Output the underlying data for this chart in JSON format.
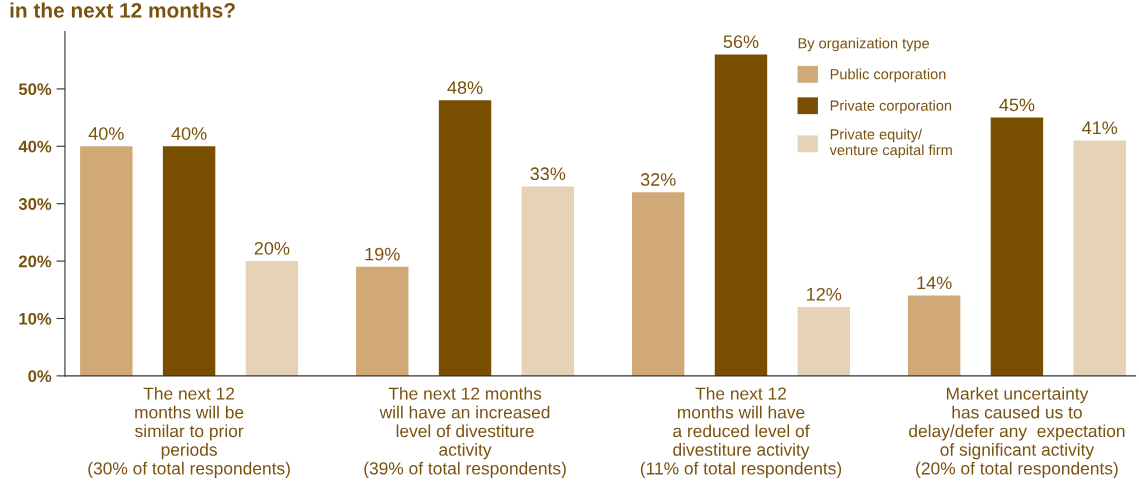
{
  "chart_data": {
    "type": "bar",
    "title": "in the next 12 months?",
    "categories": [
      "The next 12\nmonths will be\nsimilar to prior\nperiods\n(30% of total respondents)",
      "The next 12 months\nwill have an increased\nlevel of divestiture\nactivity\n(39% of total respondents)",
      "The next 12\nmonths will have\na reduced level of\ndivestiture activity\n(11% of total respondents)",
      "Market uncertainty\nhas caused us to\ndelay/defer any  expectation\nof significant activity\n(20% of total respondents)"
    ],
    "series": [
      {
        "name": "Public corporation",
        "color": "#d0a977",
        "values": [
          40,
          19,
          32,
          14
        ],
        "value_labels": [
          "40%",
          "19%",
          "32%",
          "14%"
        ]
      },
      {
        "name": "Private corporation",
        "color": "#7a4e00",
        "values": [
          40,
          48,
          56,
          45
        ],
        "value_labels": [
          "40%",
          "48%",
          "56%",
          "45%"
        ]
      },
      {
        "name": "Private equity/\nventure capital firm",
        "color": "#e6d2b6",
        "values": [
          20,
          33,
          12,
          41
        ],
        "value_labels": [
          "20%",
          "33%",
          "12%",
          "41%"
        ]
      }
    ],
    "legend_title": "By organization type",
    "legend": "top right",
    "ylim": [
      0,
      60
    ],
    "yticks": [
      {
        "value": 0,
        "label": "0%"
      },
      {
        "value": 10,
        "label": "10%"
      },
      {
        "value": 20,
        "label": "20%"
      },
      {
        "value": 30,
        "label": "30%"
      },
      {
        "value": 40,
        "label": "40%"
      },
      {
        "value": 50,
        "label": "50%"
      }
    ],
    "grid": false
  }
}
